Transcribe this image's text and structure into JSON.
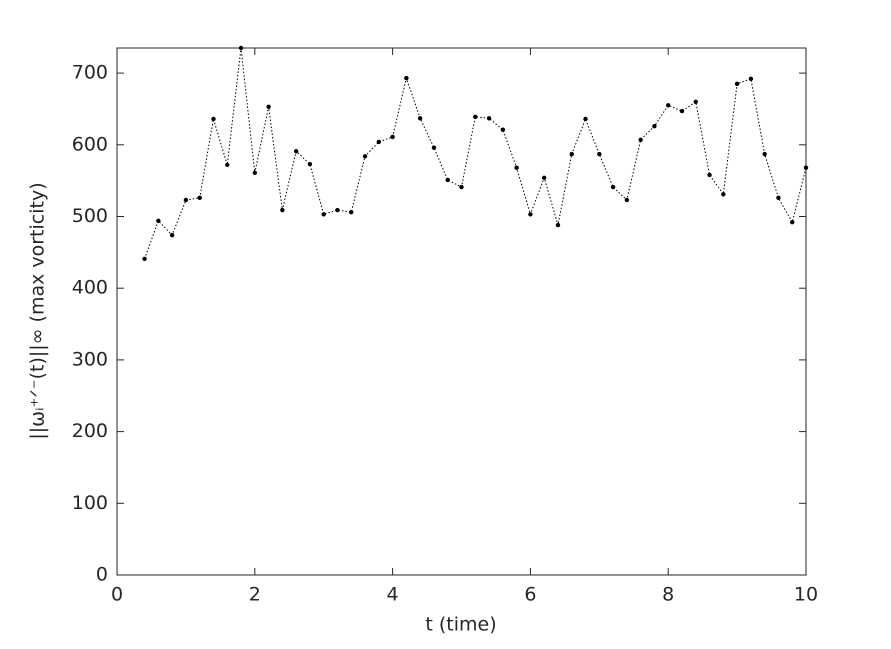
{
  "chart_data": {
    "type": "line",
    "x_label": "t (time)",
    "y_label": "||ωᵢ⁺ᐟ⁻(t)||∞ (max vorticity)",
    "x": [
      0.4,
      0.6,
      0.8,
      1.0,
      1.2,
      1.4,
      1.6,
      1.8,
      2.0,
      2.2,
      2.4,
      2.6,
      2.8,
      3.0,
      3.2,
      3.4,
      3.6,
      3.8,
      4.0,
      4.2,
      4.4,
      4.6,
      4.8,
      5.0,
      5.2,
      5.4,
      5.6,
      5.8,
      6.0,
      6.2,
      6.4,
      6.6,
      6.8,
      7.0,
      7.2,
      7.4,
      7.6,
      7.8,
      8.0,
      8.2,
      8.4,
      8.6,
      8.8,
      9.0,
      9.2,
      9.4,
      9.6,
      9.8,
      10.0
    ],
    "series": [
      {
        "color": "#000000",
        "values": [
          441,
          494,
          474,
          523,
          526,
          636,
          572,
          735,
          561,
          653,
          509,
          591,
          573,
          503,
          509,
          506,
          584,
          604,
          611,
          693,
          637,
          596,
          551,
          541,
          639,
          637,
          621,
          568,
          503,
          554,
          488,
          587,
          636,
          587,
          541,
          523,
          607,
          626,
          655,
          647,
          660,
          558,
          531,
          685,
          692,
          587,
          526,
          492,
          568
        ]
      }
    ],
    "xlim": [
      0,
      10
    ],
    "xticks": [
      0,
      2,
      4,
      6,
      8,
      10
    ],
    "ylim": [
      0,
      735
    ],
    "yticks": [
      0,
      100,
      200,
      300,
      400,
      500,
      600,
      700
    ],
    "grid": false
  }
}
